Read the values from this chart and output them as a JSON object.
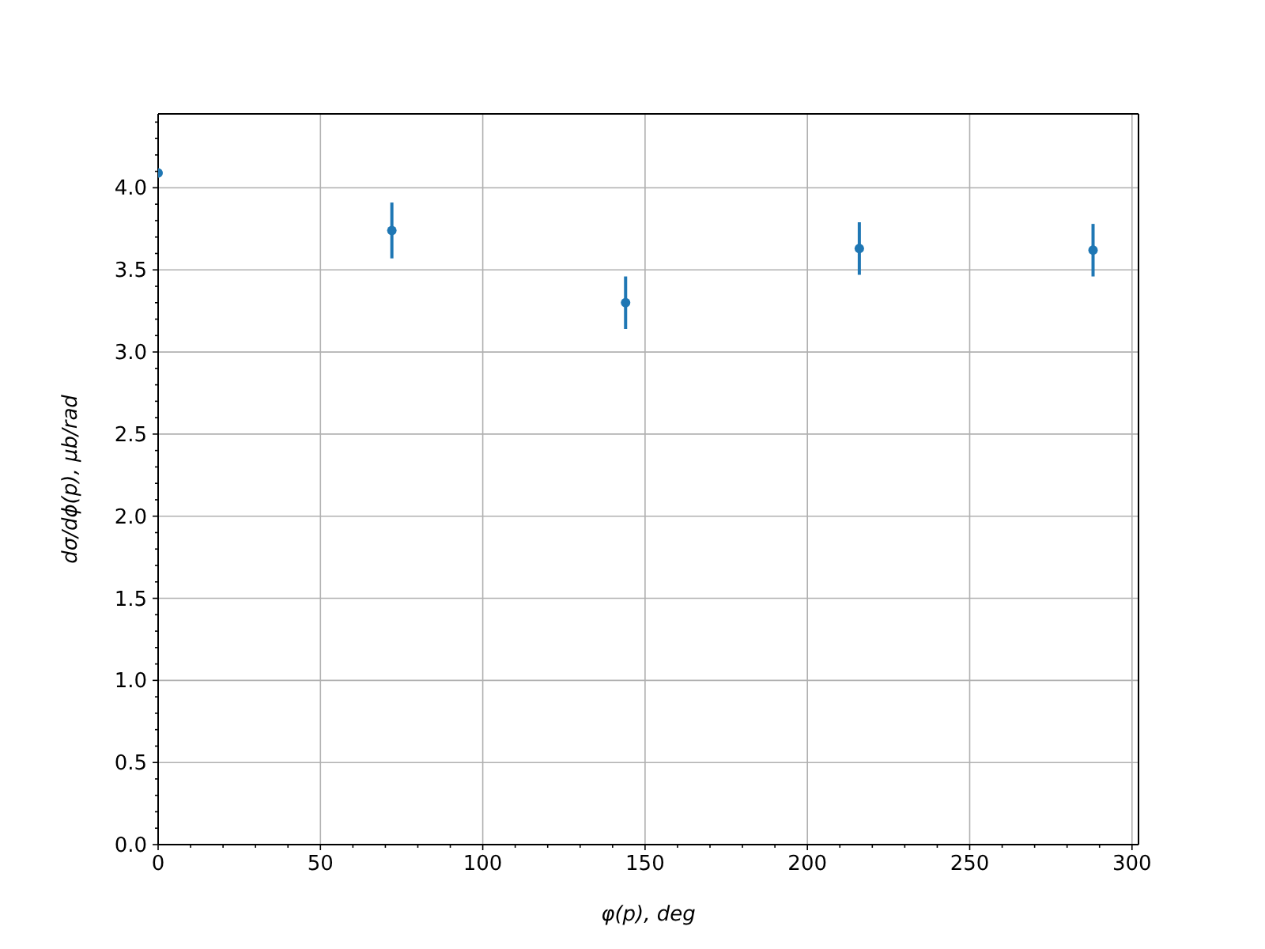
{
  "chart_data": {
    "type": "scatter",
    "xlabel": "φ(p), deg",
    "ylabel": "dσ/dϕ(p), μb/rad",
    "x": [
      0,
      72,
      144,
      216,
      288
    ],
    "series": [
      {
        "color": "#1f77b4",
        "values": [
          4.09,
          3.74,
          3.3,
          3.63,
          3.62
        ],
        "errors": [
          null,
          0.17,
          0.16,
          0.16,
          0.16
        ]
      }
    ],
    "marker": "circle",
    "grid": true,
    "xlim": [
      0,
      302
    ],
    "ylim": [
      0,
      4.45
    ],
    "xticks": [
      0,
      {
        "value": 10,
        "label": null
      },
      {
        "value": 20,
        "label": null
      },
      {
        "value": 30,
        "label": null
      },
      {
        "value": 40,
        "label": null
      },
      50,
      {
        "value": 60,
        "label": null
      },
      {
        "value": 70,
        "label": null
      },
      {
        "value": 80,
        "label": null
      },
      {
        "value": 90,
        "label": null
      },
      100,
      {
        "value": 110,
        "label": null
      },
      {
        "value": 120,
        "label": null
      },
      {
        "value": 130,
        "label": null
      },
      {
        "value": 140,
        "label": null
      },
      150,
      {
        "value": 160,
        "label": null
      },
      {
        "value": 170,
        "label": null
      },
      {
        "value": 180,
        "label": null
      },
      {
        "value": 190,
        "label": null
      },
      200,
      {
        "value": 210,
        "label": null
      },
      {
        "value": 220,
        "label": null
      },
      {
        "value": 230,
        "label": null
      },
      {
        "value": 240,
        "label": null
      },
      250,
      {
        "value": 260,
        "label": null
      },
      {
        "value": 270,
        "label": null
      },
      {
        "value": 280,
        "label": null
      },
      {
        "value": 290,
        "label": null
      },
      300
    ],
    "yticks": [
      {
        "value": 0,
        "label": "0.0"
      },
      {
        "value": 0.1,
        "label": null
      },
      {
        "value": 0.2,
        "label": null
      },
      {
        "value": 0.3,
        "label": null
      },
      {
        "value": 0.4,
        "label": null
      },
      0.5,
      {
        "value": 0.6,
        "label": null
      },
      {
        "value": 0.7,
        "label": null
      },
      {
        "value": 0.8,
        "label": null
      },
      {
        "value": 0.9,
        "label": null
      },
      {
        "value": 1,
        "label": "1.0"
      },
      {
        "value": 1.1,
        "label": null
      },
      {
        "value": 1.2,
        "label": null
      },
      {
        "value": 1.3,
        "label": null
      },
      {
        "value": 1.4,
        "label": null
      },
      1.5,
      {
        "value": 1.6,
        "label": null
      },
      {
        "value": 1.7,
        "label": null
      },
      {
        "value": 1.8,
        "label": null
      },
      {
        "value": 1.9,
        "label": null
      },
      {
        "value": 2,
        "label": "2.0"
      },
      {
        "value": 2.1,
        "label": null
      },
      {
        "value": 2.2,
        "label": null
      },
      {
        "value": 2.3,
        "label": null
      },
      {
        "value": 2.4,
        "label": null
      },
      2.5,
      {
        "value": 2.6,
        "label": null
      },
      {
        "value": 2.7,
        "label": null
      },
      {
        "value": 2.8,
        "label": null
      },
      {
        "value": 2.9,
        "label": null
      },
      {
        "value": 3,
        "label": "3.0"
      },
      {
        "value": 3.1,
        "label": null
      },
      {
        "value": 3.2,
        "label": null
      },
      {
        "value": 3.3,
        "label": null
      },
      {
        "value": 3.4,
        "label": null
      },
      3.5,
      {
        "value": 3.6,
        "label": null
      },
      {
        "value": 3.7,
        "label": null
      },
      {
        "value": 3.8,
        "label": null
      },
      {
        "value": 3.9,
        "label": null
      },
      {
        "value": 4,
        "label": "4.0"
      },
      {
        "value": 4.1,
        "label": null
      },
      {
        "value": 4.2,
        "label": null
      },
      {
        "value": 4.3,
        "label": null
      },
      {
        "value": 4.4,
        "label": null
      }
    ]
  }
}
